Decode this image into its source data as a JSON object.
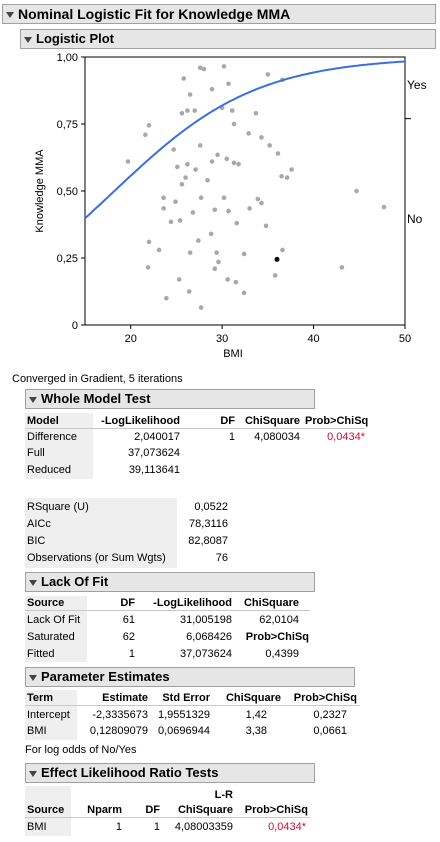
{
  "report_title": "Nominal Logistic Fit for Knowledge MMA",
  "logistic_plot": {
    "title": "Logistic Plot",
    "chart_data": {
      "type": "scatter",
      "xlabel": "BMI",
      "ylabel": "Knowledge MMA",
      "xlim": [
        15,
        50
      ],
      "ylim": [
        0,
        1
      ],
      "x_ticks": [
        "20",
        "30",
        "40",
        "50"
      ],
      "y_ticks": [
        "0",
        "0,25",
        "0,50",
        "0,75",
        "1,00"
      ],
      "right_labels": [
        "Yes",
        "No"
      ],
      "right_label_divider_y": 0.77,
      "curve": {
        "intercept": -2.3335673,
        "slope": 0.12809079,
        "color": "#3b6fde"
      },
      "highlight_color": "#000000",
      "point_color": "#a8a8a8",
      "points": [
        {
          "x": 27.6,
          "y": 0.96
        },
        {
          "x": 28.0,
          "y": 0.955
        },
        {
          "x": 30.2,
          "y": 0.965
        },
        {
          "x": 25.8,
          "y": 0.92
        },
        {
          "x": 30.7,
          "y": 0.9
        },
        {
          "x": 26.5,
          "y": 0.86
        },
        {
          "x": 28.9,
          "y": 0.88
        },
        {
          "x": 35.0,
          "y": 0.935
        },
        {
          "x": 36.6,
          "y": 0.915
        },
        {
          "x": 26.2,
          "y": 0.8
        },
        {
          "x": 27.0,
          "y": 0.8
        },
        {
          "x": 25.6,
          "y": 0.79
        },
        {
          "x": 30.0,
          "y": 0.81
        },
        {
          "x": 31.1,
          "y": 0.8
        },
        {
          "x": 33.7,
          "y": 0.79
        },
        {
          "x": 22.0,
          "y": 0.745
        },
        {
          "x": 21.6,
          "y": 0.71
        },
        {
          "x": 31.3,
          "y": 0.75
        },
        {
          "x": 32.9,
          "y": 0.715
        },
        {
          "x": 34.3,
          "y": 0.7
        },
        {
          "x": 35.2,
          "y": 0.67
        },
        {
          "x": 36.1,
          "y": 0.64
        },
        {
          "x": 24.7,
          "y": 0.655
        },
        {
          "x": 29.5,
          "y": 0.635
        },
        {
          "x": 27.6,
          "y": 0.67
        },
        {
          "x": 30.5,
          "y": 0.62
        },
        {
          "x": 19.7,
          "y": 0.61
        },
        {
          "x": 28.9,
          "y": 0.61
        },
        {
          "x": 31.3,
          "y": 0.605
        },
        {
          "x": 31.8,
          "y": 0.6
        },
        {
          "x": 26.2,
          "y": 0.6
        },
        {
          "x": 25.1,
          "y": 0.59
        },
        {
          "x": 27.1,
          "y": 0.58
        },
        {
          "x": 36.5,
          "y": 0.555
        },
        {
          "x": 37.6,
          "y": 0.58
        },
        {
          "x": 37.1,
          "y": 0.55
        },
        {
          "x": 26.0,
          "y": 0.55
        },
        {
          "x": 28.4,
          "y": 0.54
        },
        {
          "x": 25.6,
          "y": 0.525
        },
        {
          "x": 23.6,
          "y": 0.475
        },
        {
          "x": 27.7,
          "y": 0.475
        },
        {
          "x": 24.9,
          "y": 0.46
        },
        {
          "x": 30.2,
          "y": 0.475
        },
        {
          "x": 33.9,
          "y": 0.47
        },
        {
          "x": 34.3,
          "y": 0.455
        },
        {
          "x": 33.0,
          "y": 0.435
        },
        {
          "x": 23.6,
          "y": 0.435
        },
        {
          "x": 29.2,
          "y": 0.43
        },
        {
          "x": 26.8,
          "y": 0.42
        },
        {
          "x": 30.7,
          "y": 0.425
        },
        {
          "x": 25.4,
          "y": 0.39
        },
        {
          "x": 24.4,
          "y": 0.385
        },
        {
          "x": 31.6,
          "y": 0.38
        },
        {
          "x": 34.8,
          "y": 0.37
        },
        {
          "x": 44.7,
          "y": 0.5
        },
        {
          "x": 47.7,
          "y": 0.44
        },
        {
          "x": 28.8,
          "y": 0.34
        },
        {
          "x": 27.4,
          "y": 0.315
        },
        {
          "x": 22.0,
          "y": 0.31
        },
        {
          "x": 23.1,
          "y": 0.28
        },
        {
          "x": 26.5,
          "y": 0.27
        },
        {
          "x": 29.4,
          "y": 0.27
        },
        {
          "x": 32.4,
          "y": 0.265
        },
        {
          "x": 36.6,
          "y": 0.28
        },
        {
          "x": 29.6,
          "y": 0.235
        },
        {
          "x": 21.9,
          "y": 0.215
        },
        {
          "x": 29.2,
          "y": 0.21
        },
        {
          "x": 43.1,
          "y": 0.215
        },
        {
          "x": 35.8,
          "y": 0.185
        },
        {
          "x": 25.3,
          "y": 0.17
        },
        {
          "x": 30.6,
          "y": 0.17
        },
        {
          "x": 31.5,
          "y": 0.16
        },
        {
          "x": 23.9,
          "y": 0.1
        },
        {
          "x": 26.4,
          "y": 0.125
        },
        {
          "x": 32.4,
          "y": 0.12
        },
        {
          "x": 27.7,
          "y": 0.065
        }
      ],
      "highlight_point": {
        "x": 36.0,
        "y": 0.245
      }
    }
  },
  "converged_text": "Converged in Gradient, 5 iterations",
  "whole_model": {
    "title": "Whole Model Test",
    "headers": [
      "Model",
      "-LogLikelihood",
      "DF",
      "ChiSquare",
      "Prob>ChiSq"
    ],
    "rows": [
      {
        "model": "Difference",
        "loglik": "2,040017",
        "df": "1",
        "chisq": "4,080034",
        "prob": "0,0434*"
      },
      {
        "model": "Full",
        "loglik": "37,073624"
      },
      {
        "model": "Reduced",
        "loglik": "39,113641"
      }
    ],
    "stats": [
      {
        "label": "RSquare (U)",
        "value": "0,0522"
      },
      {
        "label": "AICc",
        "value": "78,3116"
      },
      {
        "label": "BIC",
        "value": "82,8087"
      },
      {
        "label": "Observations (or Sum Wgts)",
        "value": "76"
      }
    ]
  },
  "lack_of_fit": {
    "title": "Lack Of Fit",
    "headers": [
      "Source",
      "DF",
      "-LogLikelihood",
      "ChiSquare"
    ],
    "rows": [
      {
        "source": "Lack Of Fit",
        "df": "61",
        "loglik": "31,005198",
        "extra": "62,0104"
      },
      {
        "source": "Saturated",
        "df": "62",
        "loglik": "6,068426",
        "extra": "Prob>ChiSq"
      },
      {
        "source": "Fitted",
        "df": "1",
        "loglik": "37,073624",
        "extra": "0,4399"
      }
    ]
  },
  "parameter_estimates": {
    "title": "Parameter Estimates",
    "headers": [
      "Term",
      "Estimate",
      "Std Error",
      "ChiSquare",
      "Prob>ChiSq"
    ],
    "rows": [
      {
        "term": "Intercept",
        "estimate": "-2,3335673",
        "stderr": "1,9551329",
        "chisq": "1,42",
        "prob": "0,2327"
      },
      {
        "term": "BMI",
        "estimate": "0,12809079",
        "stderr": "0,0696944",
        "chisq": "3,38",
        "prob": "0,0661"
      }
    ],
    "note": "For log odds of No/Yes"
  },
  "effect_lr": {
    "title": "Effect Likelihood Ratio Tests",
    "headers": [
      "Source",
      "Nparm",
      "DF",
      "L-R",
      "ChiSquare",
      "Prob>ChiSq"
    ],
    "rows": [
      {
        "source": "BMI",
        "nparm": "1",
        "df": "1",
        "chisq": "4,08003359",
        "prob": "0,0434*"
      }
    ]
  }
}
